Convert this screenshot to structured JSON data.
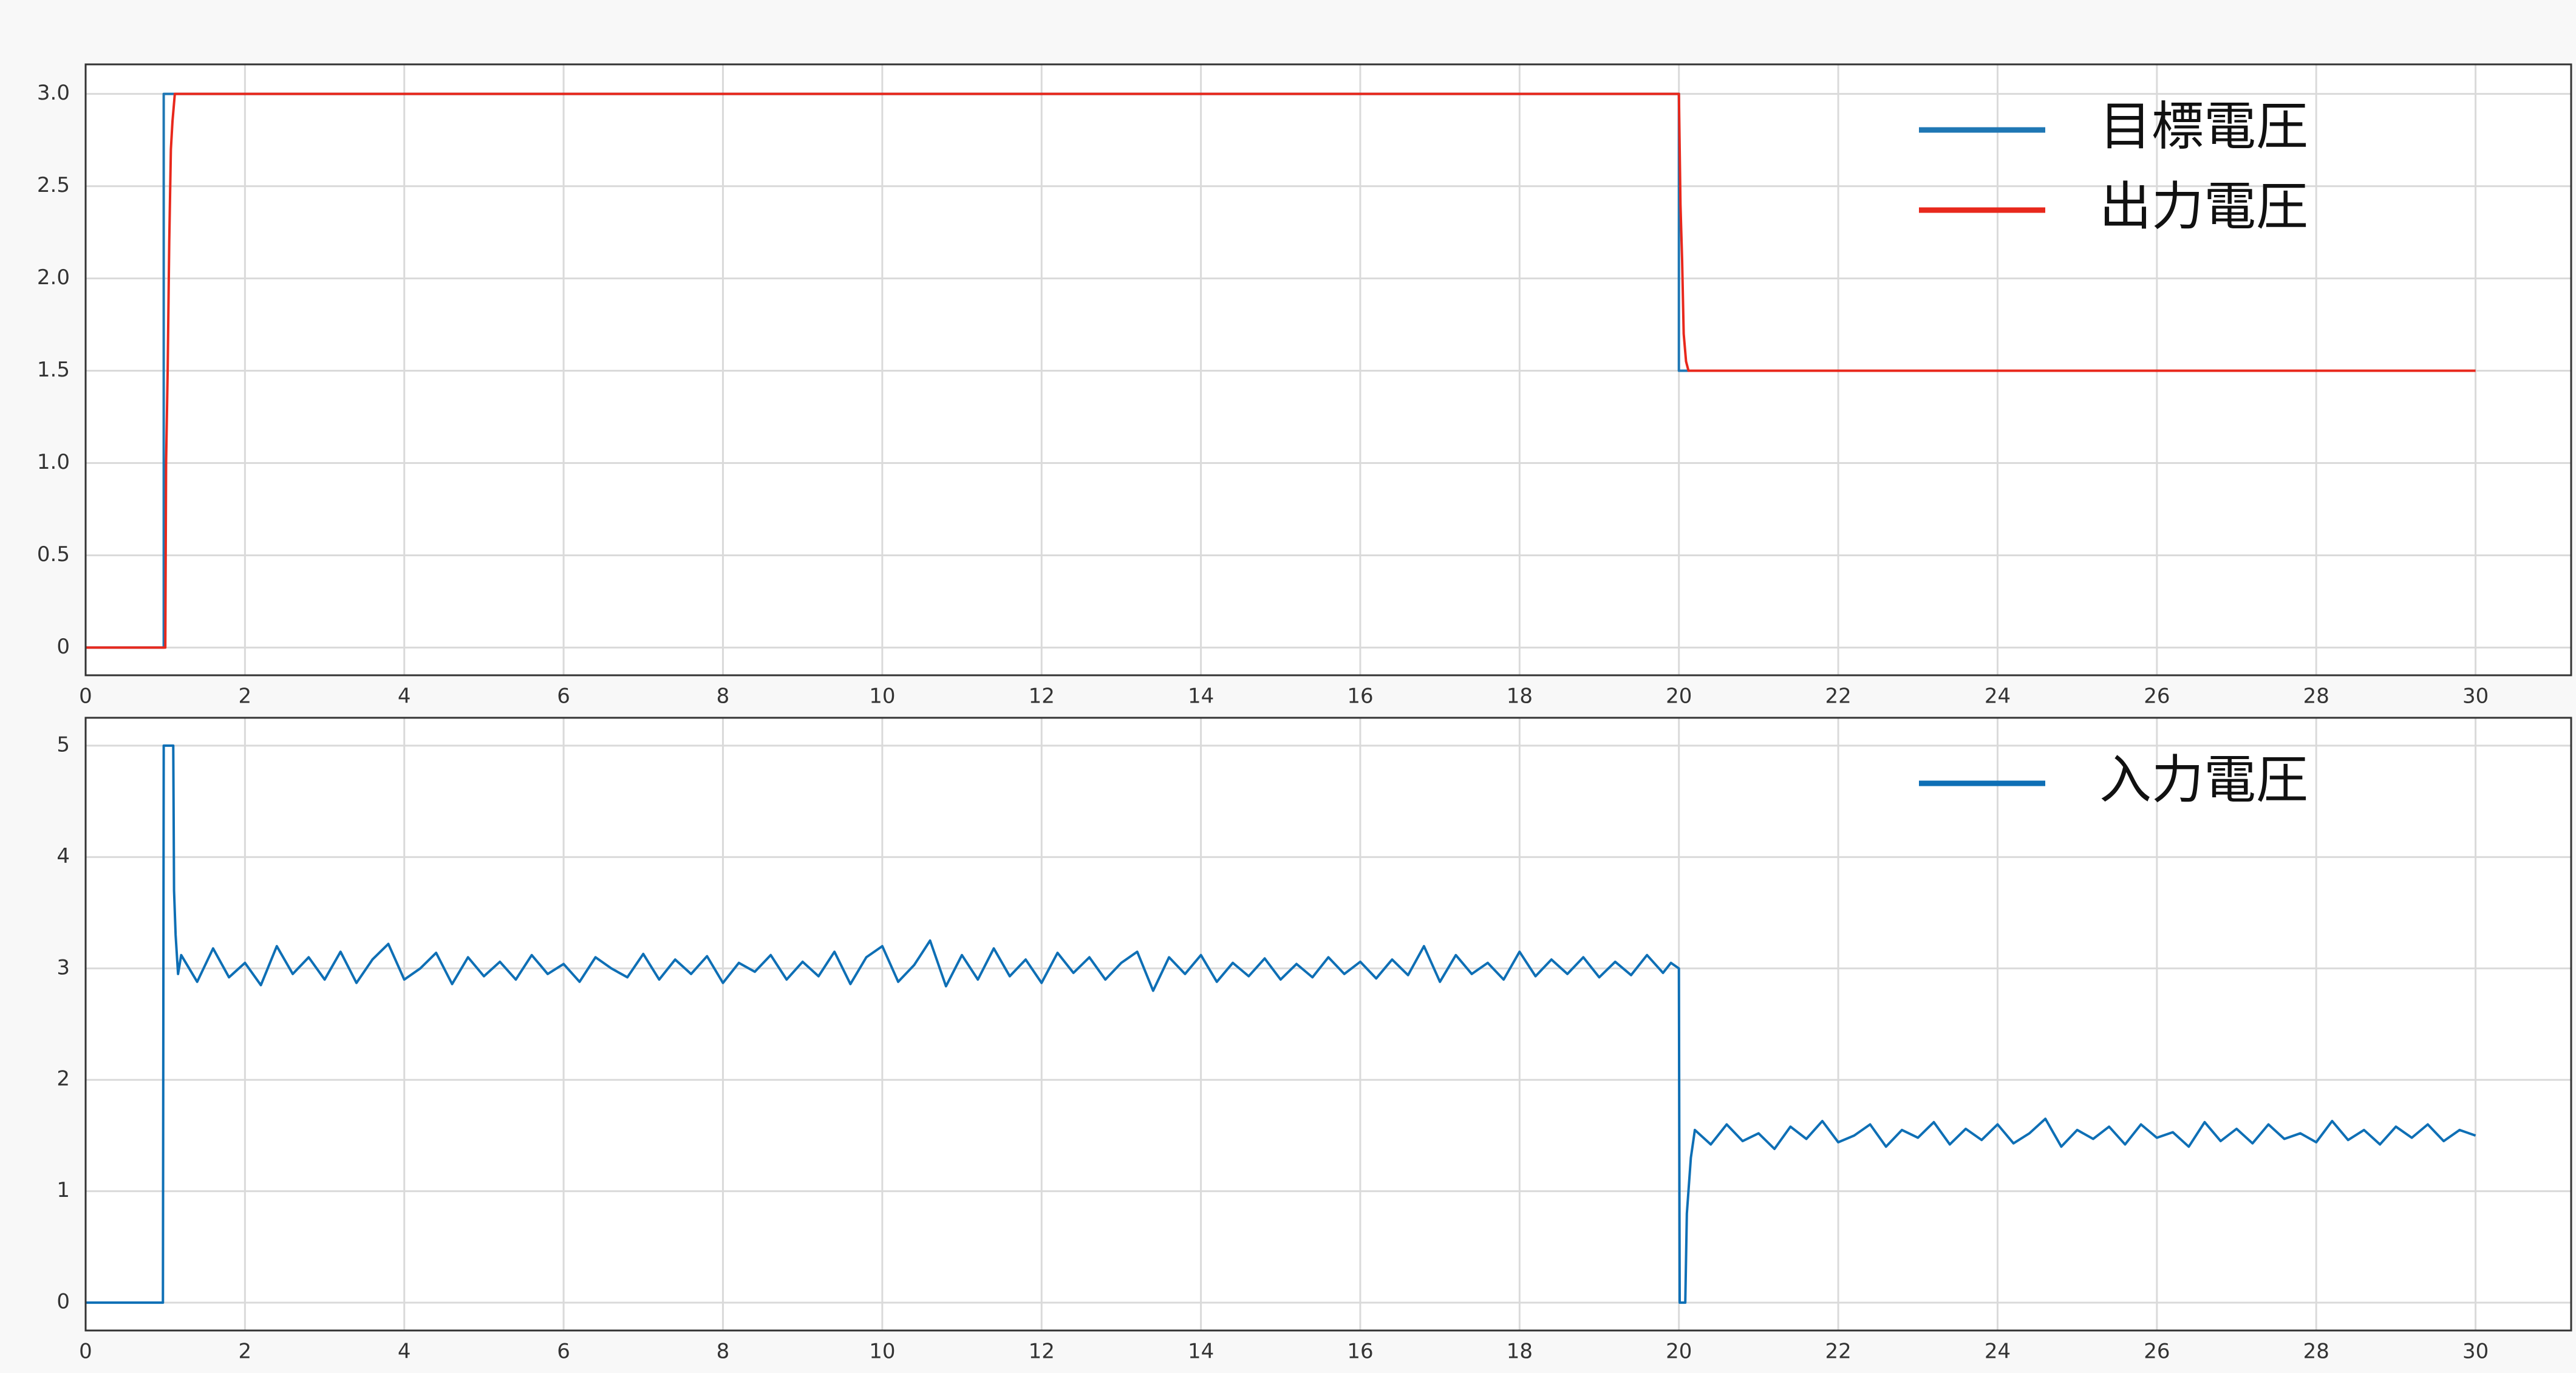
{
  "chart_data": [
    {
      "type": "line",
      "xlim": [
        0,
        31.2
      ],
      "ylim": [
        -0.15,
        3.16
      ],
      "grid": true,
      "legend": "upper right",
      "xticks": [
        0,
        2,
        4,
        6,
        8,
        10,
        12,
        14,
        16,
        18,
        20,
        22,
        24,
        26,
        28,
        30
      ],
      "yticks": [
        {
          "value": 0,
          "label": "0"
        },
        {
          "value": 0.5,
          "label": "0.5"
        },
        {
          "value": 1,
          "label": "1.0"
        },
        {
          "value": 1.5,
          "label": "1.5"
        },
        {
          "value": 2,
          "label": "2.0"
        },
        {
          "value": 2.5,
          "label": "2.5"
        },
        {
          "value": 3,
          "label": "3.0"
        }
      ],
      "series": [
        {
          "name": "目標電圧",
          "color": "#1f77b4",
          "x": [
            0,
            0.98,
            0.98,
            20.0,
            20.0,
            30.0
          ],
          "values": [
            0,
            0,
            3,
            3,
            1.5,
            1.5
          ]
        },
        {
          "name": "出力電圧",
          "color": "#e8281c",
          "x": [
            0,
            1.0,
            1.01,
            1.03,
            1.05,
            1.07,
            1.09,
            1.12,
            1.2,
            20.0,
            20.02,
            20.04,
            20.06,
            20.09,
            20.12,
            20.16,
            30.0
          ],
          "values": [
            0,
            0,
            1.0,
            1.5,
            2.2,
            2.7,
            2.85,
            3.0,
            3.0,
            3.0,
            2.4,
            2.1,
            1.7,
            1.55,
            1.5,
            1.5,
            1.5
          ]
        }
      ]
    },
    {
      "type": "line",
      "xlim": [
        0,
        31.2
      ],
      "ylim": [
        -0.25,
        5.25
      ],
      "grid": true,
      "legend": "upper right",
      "xticks": [
        0,
        2,
        4,
        6,
        8,
        10,
        12,
        14,
        16,
        18,
        20,
        22,
        24,
        26,
        28,
        30
      ],
      "yticks": [
        0,
        1,
        2,
        3,
        4,
        5
      ],
      "series": [
        {
          "name": "入力電圧",
          "color": "#0e6fb5",
          "x": [
            0,
            0.97,
            0.98,
            1.1,
            1.11,
            1.13,
            1.16,
            1.2,
            1.4,
            1.6,
            1.8,
            2.0,
            2.2,
            2.4,
            2.6,
            2.8,
            3.0,
            3.2,
            3.4,
            3.6,
            3.8,
            4.0,
            4.2,
            4.4,
            4.6,
            4.8,
            5.0,
            5.2,
            5.4,
            5.6,
            5.8,
            6.0,
            6.2,
            6.4,
            6.6,
            6.8,
            7.0,
            7.2,
            7.4,
            7.6,
            7.8,
            8.0,
            8.2,
            8.4,
            8.6,
            8.8,
            9.0,
            9.2,
            9.4,
            9.6,
            9.8,
            10.0,
            10.2,
            10.4,
            10.6,
            10.8,
            11.0,
            11.2,
            11.4,
            11.6,
            11.8,
            12.0,
            12.2,
            12.4,
            12.6,
            12.8,
            13.0,
            13.2,
            13.4,
            13.6,
            13.8,
            14.0,
            14.2,
            14.4,
            14.6,
            14.8,
            15.0,
            15.2,
            15.4,
            15.6,
            15.8,
            16.0,
            16.2,
            16.4,
            16.6,
            16.8,
            17.0,
            17.2,
            17.4,
            17.6,
            17.8,
            18.0,
            18.2,
            18.4,
            18.6,
            18.8,
            19.0,
            19.2,
            19.4,
            19.6,
            19.8,
            19.9,
            20.0,
            20.01,
            20.08,
            20.1,
            20.15,
            20.2,
            20.4,
            20.6,
            20.8,
            21.0,
            21.2,
            21.4,
            21.6,
            21.8,
            22.0,
            22.2,
            22.4,
            22.6,
            22.8,
            23.0,
            23.2,
            23.4,
            23.6,
            23.8,
            24.0,
            24.2,
            24.4,
            24.6,
            24.8,
            25.0,
            25.2,
            25.4,
            25.6,
            25.8,
            26.0,
            26.2,
            26.4,
            26.6,
            26.8,
            27.0,
            27.2,
            27.4,
            27.6,
            27.8,
            28.0,
            28.2,
            28.4,
            28.6,
            28.8,
            29.0,
            29.2,
            29.4,
            29.6,
            29.8,
            30.0
          ],
          "values": [
            0,
            0,
            5,
            5,
            3.7,
            3.3,
            2.95,
            3.12,
            2.88,
            3.18,
            2.92,
            3.05,
            2.85,
            3.2,
            2.95,
            3.1,
            2.9,
            3.15,
            2.87,
            3.08,
            3.22,
            2.9,
            3.0,
            3.14,
            2.86,
            3.1,
            2.93,
            3.06,
            2.9,
            3.12,
            2.95,
            3.04,
            2.88,
            3.1,
            3.0,
            2.92,
            3.13,
            2.9,
            3.08,
            2.95,
            3.11,
            2.87,
            3.05,
            2.97,
            3.12,
            2.9,
            3.06,
            2.93,
            3.15,
            2.86,
            3.1,
            3.2,
            2.88,
            3.03,
            3.25,
            2.84,
            3.12,
            2.9,
            3.18,
            2.93,
            3.08,
            2.87,
            3.14,
            2.96,
            3.1,
            2.9,
            3.05,
            3.15,
            2.8,
            3.1,
            2.95,
            3.12,
            2.88,
            3.05,
            2.93,
            3.09,
            2.9,
            3.04,
            2.92,
            3.1,
            2.95,
            3.06,
            2.91,
            3.08,
            2.94,
            3.2,
            2.88,
            3.12,
            2.95,
            3.05,
            2.9,
            3.15,
            2.93,
            3.08,
            2.95,
            3.1,
            2.92,
            3.06,
            2.94,
            3.12,
            2.96,
            3.05,
            3.0,
            0,
            0,
            0.8,
            1.3,
            1.55,
            1.42,
            1.6,
            1.45,
            1.52,
            1.38,
            1.58,
            1.47,
            1.63,
            1.44,
            1.5,
            1.6,
            1.4,
            1.55,
            1.48,
            1.62,
            1.42,
            1.56,
            1.46,
            1.6,
            1.43,
            1.52,
            1.65,
            1.4,
            1.55,
            1.47,
            1.58,
            1.42,
            1.6,
            1.48,
            1.53,
            1.4,
            1.62,
            1.45,
            1.56,
            1.43,
            1.6,
            1.47,
            1.52,
            1.44,
            1.63,
            1.46,
            1.55,
            1.42,
            1.58,
            1.48,
            1.6,
            1.45,
            1.55,
            1.5
          ]
        }
      ]
    }
  ]
}
